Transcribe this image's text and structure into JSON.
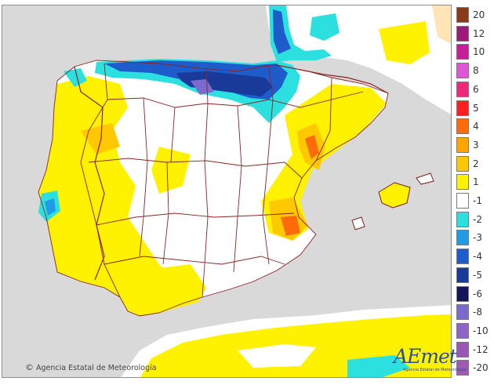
{
  "map": {
    "copyright_symbol": "©",
    "copyright": "Agencia Estatal de Meteorología",
    "logo_text": "AEmet",
    "logo_sub": "Agencia Estatal de Meteorología",
    "colors": {
      "sea": "#d9d9d9",
      "land": "#ffffff",
      "border": "#8b2323",
      "coast": "#7a1c1c"
    }
  },
  "legend": {
    "items": [
      {
        "label": "20",
        "color": "#8b3a1a"
      },
      {
        "label": "12",
        "color": "#a0187a"
      },
      {
        "label": "10",
        "color": "#c81e9a"
      },
      {
        "label": "8",
        "color": "#e055d8"
      },
      {
        "label": "6",
        "color": "#f0287a"
      },
      {
        "label": "5",
        "color": "#ff1f1f"
      },
      {
        "label": "4",
        "color": "#ff6a0a"
      },
      {
        "label": "3",
        "color": "#ffa500"
      },
      {
        "label": "2",
        "color": "#ffc800"
      },
      {
        "label": "1",
        "color": "#fff200"
      },
      {
        "label": "-1",
        "color": "#ffffff"
      },
      {
        "label": "-2",
        "color": "#2de0e0"
      },
      {
        "label": "-3",
        "color": "#1f9be8"
      },
      {
        "label": "-4",
        "color": "#1e5ccc"
      },
      {
        "label": "-5",
        "color": "#1a3a9a"
      },
      {
        "label": "-6",
        "color": "#14145a"
      },
      {
        "label": "-8",
        "color": "#7a6acd"
      },
      {
        "label": "-10",
        "color": "#8e64c8"
      },
      {
        "label": "-12",
        "color": "#9b55b4"
      },
      {
        "label": "-20",
        "color": "#a05ab4"
      }
    ]
  }
}
